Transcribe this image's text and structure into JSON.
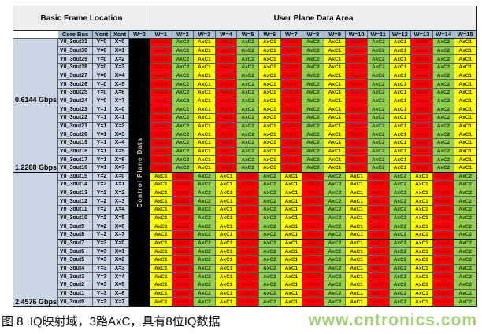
{
  "table": {
    "band": {
      "left": "Basic Frame Location",
      "right": "User Plane Data Area"
    },
    "col_headers": {
      "core_bus": "Core Bus",
      "ycnt": "Ycnt",
      "xcnt": "Xcnt",
      "w0": "W=0",
      "w": [
        "W=1",
        "W=2",
        "W=3",
        "W=4",
        "W=5",
        "W=6",
        "W=7",
        "W=8",
        "W=9",
        "W=10",
        "W=11",
        "W=12",
        "W=13",
        "W=14",
        "W=15"
      ]
    },
    "control_plane_label": "Control Plane Data",
    "rate_groups": [
      {
        "label": "0.6144 Gbps",
        "rows": 8
      },
      {
        "label": "1.2288 Gbps",
        "rows": 8
      },
      {
        "label": "2.4576 Gbps",
        "rows": 16
      }
    ],
    "patterns": {
      "A": [
        "AxC0",
        "AxC2",
        "AxC1",
        "AxC0",
        "AxC2",
        "AxC1",
        "AxC0",
        "AxC2",
        "AxC1",
        "AxC0",
        "AxC2",
        "AxC1",
        "AxC0",
        "AxC2",
        "AxC1"
      ],
      "B": [
        "AxC1",
        "AxC0",
        "AxC2",
        "AxC1",
        "AxC0",
        "AxC2",
        "AxC1",
        "AxC0",
        "AxC2",
        "AxC1",
        "AxC0",
        "AxC2",
        "AxC1",
        "AxC0",
        "AxC2"
      ]
    },
    "cell_styles": {
      "AxC0": {
        "bg": "#ff0000",
        "fg": "#991111"
      },
      "AxC1": {
        "bg": "#ffff00",
        "fg": "#262600"
      },
      "AxC2": {
        "bg": "#92d050",
        "fg": "#1d3311"
      }
    },
    "rows": [
      {
        "core_bus": "Y0_3out31",
        "ycnt": "Y=0",
        "xcnt": "X=0",
        "pattern": "A"
      },
      {
        "core_bus": "Y0_3out30",
        "ycnt": "Y=0",
        "xcnt": "X=1",
        "pattern": "A"
      },
      {
        "core_bus": "Y0_3out29",
        "ycnt": "Y=0",
        "xcnt": "X=2",
        "pattern": "A"
      },
      {
        "core_bus": "Y0_3out28",
        "ycnt": "Y=0",
        "xcnt": "X=3",
        "pattern": "A"
      },
      {
        "core_bus": "Y0_3out27",
        "ycnt": "Y=0",
        "xcnt": "X=4",
        "pattern": "A"
      },
      {
        "core_bus": "Y0_3out26",
        "ycnt": "Y=0",
        "xcnt": "X=5",
        "pattern": "A"
      },
      {
        "core_bus": "Y0_3out25",
        "ycnt": "Y=0",
        "xcnt": "X=6",
        "pattern": "A"
      },
      {
        "core_bus": "Y0_3out24",
        "ycnt": "Y=0",
        "xcnt": "X=7",
        "pattern": "A"
      },
      {
        "core_bus": "Y0_3out23",
        "ycnt": "Y=1",
        "xcnt": "X=0",
        "pattern": "A"
      },
      {
        "core_bus": "Y0_3out22",
        "ycnt": "Y=1",
        "xcnt": "X=1",
        "pattern": "A"
      },
      {
        "core_bus": "Y0_3out21",
        "ycnt": "Y=1",
        "xcnt": "X=2",
        "pattern": "A"
      },
      {
        "core_bus": "Y0_3out20",
        "ycnt": "Y=1",
        "xcnt": "X=3",
        "pattern": "A"
      },
      {
        "core_bus": "Y0_3out19",
        "ycnt": "Y=1",
        "xcnt": "X=4",
        "pattern": "A"
      },
      {
        "core_bus": "Y0_3out18",
        "ycnt": "Y=1",
        "xcnt": "X=5",
        "pattern": "A"
      },
      {
        "core_bus": "Y0_3out17",
        "ycnt": "Y=1",
        "xcnt": "X=6",
        "pattern": "A"
      },
      {
        "core_bus": "Y0_3out16",
        "ycnt": "Y=1",
        "xcnt": "X=7",
        "pattern": "A"
      },
      {
        "core_bus": "Y0_3out15",
        "ycnt": "Y=2",
        "xcnt": "X=0",
        "pattern": "B"
      },
      {
        "core_bus": "Y0_3out14",
        "ycnt": "Y=2",
        "xcnt": "X=1",
        "pattern": "B"
      },
      {
        "core_bus": "Y0_3out13",
        "ycnt": "Y=2",
        "xcnt": "X=2",
        "pattern": "B"
      },
      {
        "core_bus": "Y0_3out12",
        "ycnt": "Y=2",
        "xcnt": "X=3",
        "pattern": "B"
      },
      {
        "core_bus": "Y0_3out11",
        "ycnt": "Y=2",
        "xcnt": "X=4",
        "pattern": "B"
      },
      {
        "core_bus": "Y0_3out10",
        "ycnt": "Y=2",
        "xcnt": "X=5",
        "pattern": "B"
      },
      {
        "core_bus": "Y0_3out9",
        "ycnt": "Y=2",
        "xcnt": "X=6",
        "pattern": "B"
      },
      {
        "core_bus": "Y0_3out8",
        "ycnt": "Y=2",
        "xcnt": "X=7",
        "pattern": "B"
      },
      {
        "core_bus": "Y0_3out7",
        "ycnt": "Y=3",
        "xcnt": "X=0",
        "pattern": "B"
      },
      {
        "core_bus": "Y0_3out6",
        "ycnt": "Y=3",
        "xcnt": "X=1",
        "pattern": "B"
      },
      {
        "core_bus": "Y0_3out5",
        "ycnt": "Y=3",
        "xcnt": "X=2",
        "pattern": "B"
      },
      {
        "core_bus": "Y0_3out4",
        "ycnt": "Y=3",
        "xcnt": "X=3",
        "pattern": "B"
      },
      {
        "core_bus": "Y0_3out3",
        "ycnt": "Y=3",
        "xcnt": "X=4",
        "pattern": "B"
      },
      {
        "core_bus": "Y0_3out2",
        "ycnt": "Y=3",
        "xcnt": "X=5",
        "pattern": "B"
      },
      {
        "core_bus": "Y0_3out1",
        "ycnt": "Y=3",
        "xcnt": "X=6",
        "pattern": "B"
      },
      {
        "core_bus": "Y0_3out0",
        "ycnt": "Y=3",
        "xcnt": "X=7",
        "pattern": "B"
      }
    ]
  },
  "caption": "图 8 .IQ映射域，3路AxC，具有8位IQ数据",
  "watermark": "www.cntronics.com"
}
